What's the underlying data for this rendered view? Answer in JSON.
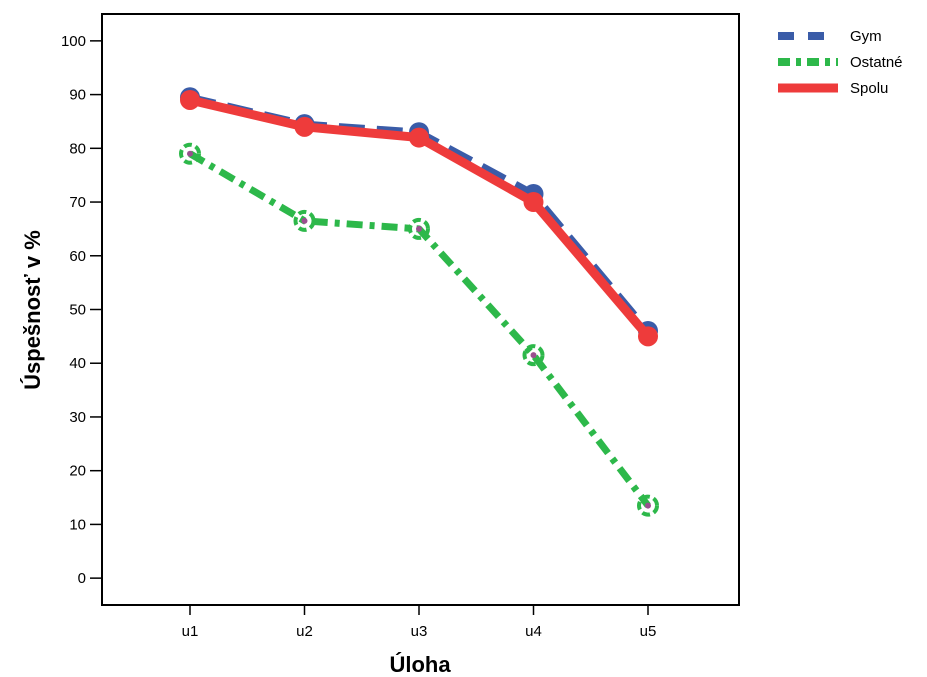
{
  "chart_data": {
    "type": "line",
    "title": "",
    "xlabel": "Úloha",
    "ylabel": "Úspešnosť v %",
    "categories": [
      "u1",
      "u2",
      "u3",
      "u4",
      "u5"
    ],
    "ylim": [
      -5,
      105
    ],
    "yticks": [
      0,
      10,
      20,
      30,
      40,
      50,
      60,
      70,
      80,
      90,
      100
    ],
    "grid": false,
    "legend_position": "top-right, outside plot",
    "series": [
      {
        "name": "Gym",
        "values": [
          89.5,
          84.5,
          83,
          71.5,
          46
        ],
        "color": "#3a5ca8",
        "style": "dashed"
      },
      {
        "name": "Ostatné",
        "values": [
          79,
          66.5,
          65,
          41.5,
          13.5
        ],
        "color": "#2db84a",
        "style": "dash-dot"
      },
      {
        "name": "Spolu",
        "values": [
          89,
          84,
          82,
          70,
          45
        ],
        "color": "#ee3b3b",
        "style": "solid"
      }
    ]
  }
}
